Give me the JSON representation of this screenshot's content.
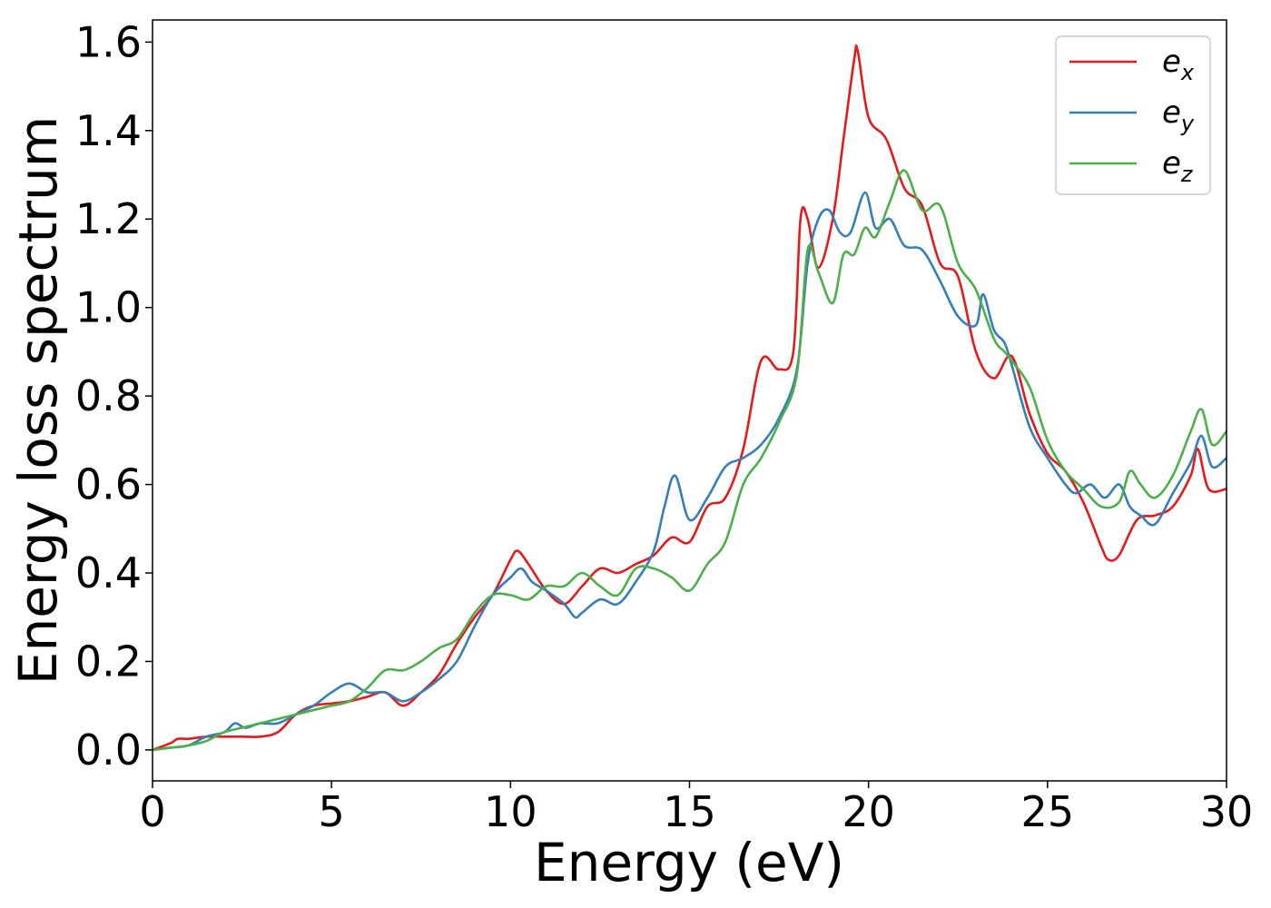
{
  "chart_data": {
    "type": "line",
    "xlabel": "Energy (eV)",
    "ylabel": "Energy loss spectrum",
    "xlim": [
      0,
      30
    ],
    "ylim": [
      -0.07,
      1.65
    ],
    "xticks": [
      0,
      5,
      10,
      15,
      20,
      25,
      30
    ],
    "xtick_labels": [
      "0",
      "5",
      "10",
      "15",
      "20",
      "25",
      "30"
    ],
    "yticks": [
      0.0,
      0.2,
      0.4,
      0.6,
      0.8,
      1.0,
      1.2,
      1.4,
      1.6
    ],
    "ytick_labels": [
      "0.0",
      "0.2",
      "0.4",
      "0.6",
      "0.8",
      "1.0",
      "1.2",
      "1.4",
      "1.6"
    ],
    "grid": false,
    "legend": "top-right",
    "series": [
      {
        "name": "e_x",
        "label_base": "e",
        "label_sub": "x",
        "color": "#e41a1c",
        "x": [
          0,
          0.5,
          0.7,
          1,
          1.5,
          2,
          2.5,
          3,
          3.5,
          4,
          4.5,
          5,
          5.5,
          6,
          6.5,
          7,
          7.5,
          8,
          8.5,
          9,
          9.5,
          10,
          10.2,
          10.5,
          11,
          11.5,
          12,
          12.5,
          13,
          13.5,
          14,
          14.5,
          15,
          15.5,
          16,
          16.5,
          17,
          17.5,
          17.9,
          18.1,
          18.3,
          18.6,
          19,
          19.3,
          19.6,
          19.7,
          20,
          20.5,
          21,
          21.5,
          22,
          22.5,
          23,
          23.5,
          24,
          24.5,
          25,
          25.5,
          26,
          26.5,
          26.7,
          27,
          27.5,
          28,
          28.5,
          29,
          29.2,
          29.5,
          30
        ],
        "y": [
          0.0,
          0.015,
          0.025,
          0.025,
          0.03,
          0.03,
          0.03,
          0.03,
          0.04,
          0.08,
          0.1,
          0.105,
          0.11,
          0.12,
          0.13,
          0.1,
          0.13,
          0.17,
          0.24,
          0.3,
          0.35,
          0.43,
          0.45,
          0.42,
          0.36,
          0.33,
          0.37,
          0.41,
          0.4,
          0.42,
          0.44,
          0.48,
          0.47,
          0.55,
          0.57,
          0.68,
          0.88,
          0.86,
          0.9,
          1.2,
          1.2,
          1.09,
          1.2,
          1.38,
          1.56,
          1.58,
          1.43,
          1.38,
          1.27,
          1.23,
          1.1,
          1.07,
          0.9,
          0.84,
          0.89,
          0.76,
          0.67,
          0.63,
          0.56,
          0.46,
          0.43,
          0.44,
          0.52,
          0.53,
          0.55,
          0.62,
          0.68,
          0.59,
          0.59
        ]
      },
      {
        "name": "e_y",
        "label_base": "e",
        "label_sub": "y",
        "color": "#377eb8",
        "x": [
          0,
          0.5,
          1,
          1.5,
          2,
          2.3,
          2.6,
          3,
          3.5,
          4,
          4.5,
          5,
          5.5,
          6,
          6.5,
          7,
          7.5,
          8,
          8.5,
          9,
          9.5,
          10,
          10.3,
          10.6,
          11,
          11.5,
          11.8,
          12,
          12.5,
          13,
          13.5,
          14,
          14.3,
          14.6,
          15,
          15.5,
          16,
          16.5,
          17,
          17.5,
          18,
          18.3,
          18.6,
          18.9,
          19.2,
          19.5,
          19.9,
          20.2,
          20.6,
          21,
          21.5,
          22,
          22.5,
          23,
          23.2,
          23.5,
          23.8,
          24,
          24.5,
          25,
          25.5,
          25.8,
          26.2,
          26.6,
          27,
          27.3,
          27.6,
          28,
          28.5,
          29,
          29.3,
          29.6,
          30
        ],
        "y": [
          0.0,
          0.005,
          0.01,
          0.03,
          0.04,
          0.06,
          0.05,
          0.06,
          0.06,
          0.08,
          0.1,
          0.13,
          0.15,
          0.13,
          0.13,
          0.11,
          0.13,
          0.16,
          0.2,
          0.28,
          0.35,
          0.39,
          0.41,
          0.38,
          0.36,
          0.33,
          0.3,
          0.31,
          0.34,
          0.33,
          0.38,
          0.45,
          0.55,
          0.62,
          0.52,
          0.57,
          0.64,
          0.66,
          0.69,
          0.75,
          0.86,
          1.1,
          1.2,
          1.22,
          1.17,
          1.17,
          1.26,
          1.18,
          1.2,
          1.14,
          1.13,
          1.06,
          0.98,
          0.96,
          1.03,
          0.95,
          0.92,
          0.87,
          0.73,
          0.66,
          0.6,
          0.58,
          0.6,
          0.57,
          0.6,
          0.55,
          0.53,
          0.51,
          0.58,
          0.65,
          0.71,
          0.64,
          0.66
        ]
      },
      {
        "name": "e_z",
        "label_base": "e",
        "label_sub": "z",
        "color": "#4daf4a",
        "x": [
          0,
          0.5,
          1,
          1.5,
          2,
          2.5,
          3,
          3.5,
          4,
          4.5,
          5,
          5.5,
          6,
          6.5,
          7,
          7.5,
          8,
          8.5,
          9,
          9.5,
          10,
          10.5,
          11,
          11.5,
          12,
          12.5,
          13,
          13.5,
          14,
          14.5,
          15,
          15.5,
          16,
          16.5,
          17,
          17.5,
          18,
          18.3,
          18.6,
          19,
          19.3,
          19.6,
          19.9,
          20.2,
          20.6,
          21,
          21.5,
          22,
          22.5,
          23,
          23.5,
          23.8,
          24,
          24.5,
          25,
          25.5,
          26,
          26.5,
          27,
          27.3,
          27.6,
          28,
          28.5,
          29,
          29.3,
          29.6,
          30
        ],
        "y": [
          0.0,
          0.005,
          0.01,
          0.02,
          0.04,
          0.05,
          0.06,
          0.07,
          0.08,
          0.09,
          0.1,
          0.11,
          0.14,
          0.18,
          0.18,
          0.2,
          0.23,
          0.25,
          0.31,
          0.35,
          0.35,
          0.34,
          0.37,
          0.37,
          0.4,
          0.37,
          0.35,
          0.41,
          0.41,
          0.39,
          0.36,
          0.42,
          0.47,
          0.6,
          0.66,
          0.74,
          0.85,
          1.13,
          1.08,
          1.01,
          1.12,
          1.12,
          1.18,
          1.16,
          1.24,
          1.31,
          1.22,
          1.23,
          1.1,
          1.04,
          0.93,
          0.9,
          0.88,
          0.82,
          0.7,
          0.63,
          0.59,
          0.55,
          0.56,
          0.63,
          0.6,
          0.57,
          0.62,
          0.72,
          0.77,
          0.69,
          0.72
        ]
      }
    ]
  }
}
